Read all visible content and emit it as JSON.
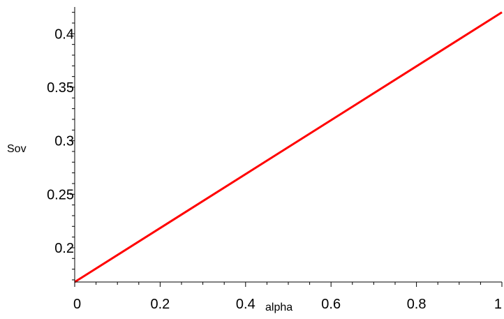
{
  "chart_data": {
    "type": "line",
    "title": "",
    "xlabel": "alpha",
    "ylabel": "Sov",
    "xlim": [
      0,
      1
    ],
    "ylim": [
      0.168,
      0.425
    ],
    "grid": false,
    "x_ticks": [
      0,
      0.2,
      0.4,
      0.6,
      0.8,
      1
    ],
    "x_tick_labels": [
      "0",
      "0.2",
      "0.4",
      "0.6",
      "0.8",
      "1"
    ],
    "y_ticks": [
      0.2,
      0.25,
      0.3,
      0.35,
      0.4
    ],
    "y_tick_labels": [
      "0.2",
      "0.25",
      "0.3",
      "0.35",
      "0.4"
    ],
    "series": [
      {
        "color": "#ff0000",
        "x": [
          0,
          1
        ],
        "y": [
          0.168,
          0.42
        ]
      }
    ]
  }
}
